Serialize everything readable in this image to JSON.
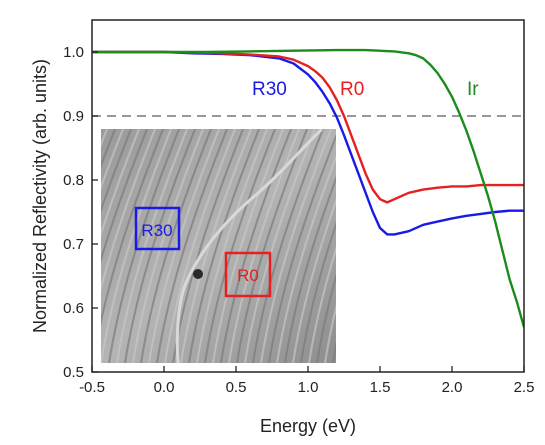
{
  "chart_data": {
    "type": "line",
    "xlabel": "Energy (eV)",
    "ylabel": "Normalized Reflectivity (arb. units)",
    "xlim": [
      -0.5,
      2.5
    ],
    "ylim": [
      0.5,
      1.05
    ],
    "xticks": [
      "-0.5",
      "0.0",
      "0.5",
      "1.0",
      "1.5",
      "2.0",
      "2.5"
    ],
    "yticks": [
      "0.5",
      "0.6",
      "0.7",
      "0.8",
      "0.9",
      "1.0"
    ],
    "grid": false,
    "reference_line": {
      "y": 0.9,
      "style": "dashed",
      "color": "#777777"
    },
    "series": [
      {
        "name": "R30",
        "color": "#1a1ae6",
        "x": [
          -0.5,
          -0.2,
          0.0,
          0.2,
          0.4,
          0.6,
          0.8,
          0.9,
          1.0,
          1.05,
          1.1,
          1.15,
          1.2,
          1.25,
          1.3,
          1.35,
          1.4,
          1.45,
          1.5,
          1.55,
          1.6,
          1.7,
          1.8,
          1.9,
          2.0,
          2.1,
          2.2,
          2.3,
          2.4,
          2.5
        ],
        "y": [
          1.0,
          1.0,
          1.0,
          0.998,
          0.997,
          0.995,
          0.99,
          0.982,
          0.965,
          0.953,
          0.938,
          0.92,
          0.898,
          0.87,
          0.84,
          0.81,
          0.78,
          0.75,
          0.725,
          0.715,
          0.715,
          0.72,
          0.73,
          0.735,
          0.74,
          0.744,
          0.747,
          0.75,
          0.752,
          0.752
        ]
      },
      {
        "name": "R0",
        "color": "#e62020",
        "x": [
          -0.5,
          -0.2,
          0.0,
          0.2,
          0.4,
          0.6,
          0.8,
          0.9,
          1.0,
          1.05,
          1.1,
          1.15,
          1.2,
          1.25,
          1.3,
          1.35,
          1.4,
          1.45,
          1.5,
          1.55,
          1.6,
          1.7,
          1.8,
          1.9,
          2.0,
          2.1,
          2.2,
          2.3,
          2.4,
          2.5
        ],
        "y": [
          1.0,
          1.0,
          1.0,
          0.999,
          0.998,
          0.996,
          0.993,
          0.988,
          0.978,
          0.97,
          0.96,
          0.945,
          0.925,
          0.9,
          0.87,
          0.84,
          0.81,
          0.785,
          0.77,
          0.765,
          0.77,
          0.78,
          0.785,
          0.788,
          0.79,
          0.79,
          0.792,
          0.792,
          0.792,
          0.792
        ]
      },
      {
        "name": "Ir",
        "color": "#1c8c1c",
        "x": [
          -0.5,
          -0.2,
          0.0,
          0.3,
          0.6,
          0.9,
          1.2,
          1.4,
          1.6,
          1.7,
          1.75,
          1.8,
          1.85,
          1.9,
          1.95,
          2.0,
          2.05,
          2.1,
          2.15,
          2.2,
          2.25,
          2.3,
          2.35,
          2.4,
          2.45,
          2.5
        ],
        "y": [
          1.0,
          1.0,
          1.0,
          1.0,
          1.001,
          1.002,
          1.003,
          1.003,
          1.001,
          0.998,
          0.995,
          0.99,
          0.98,
          0.967,
          0.95,
          0.93,
          0.905,
          0.877,
          0.845,
          0.81,
          0.775,
          0.735,
          0.69,
          0.645,
          0.61,
          0.57
        ]
      }
    ],
    "inset": {
      "boxes": [
        {
          "label": "R30",
          "color": "#1a1ae6"
        },
        {
          "label": "R0",
          "color": "#e62020"
        }
      ]
    }
  }
}
